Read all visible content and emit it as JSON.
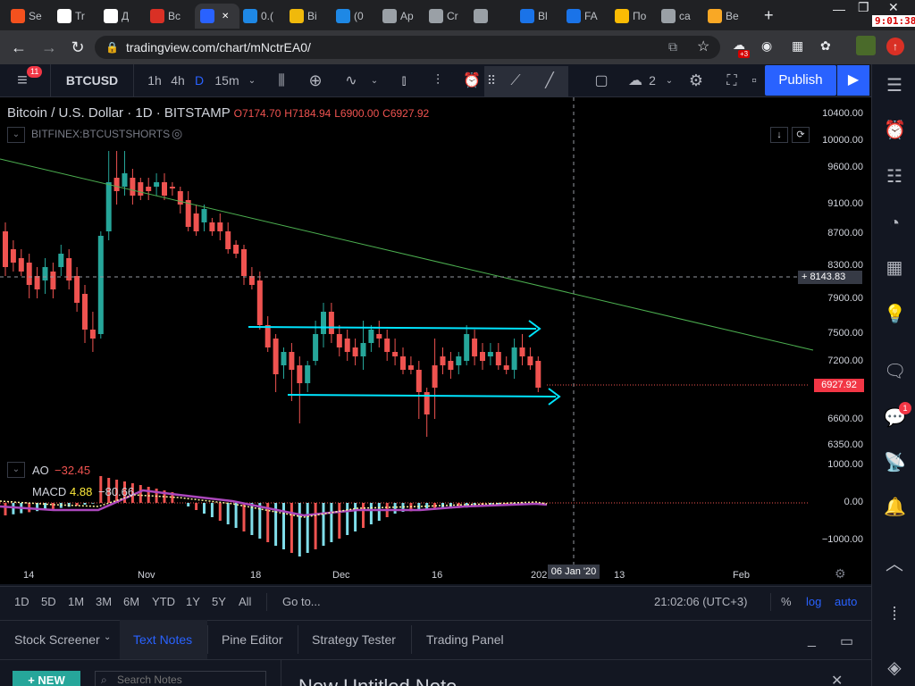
{
  "browser": {
    "tabs": [
      {
        "label": "Se",
        "color": "#f4511e"
      },
      {
        "label": "Tr",
        "color": "#ffffff"
      },
      {
        "label": "Д",
        "color": "#ffffff"
      },
      {
        "label": "Вс",
        "color": "#d93025"
      },
      {
        "label": "",
        "color": "#2962ff",
        "active": true
      },
      {
        "label": "0.(",
        "color": "#1e88e5"
      },
      {
        "label": "Bi",
        "color": "#f0b90b"
      },
      {
        "label": "(0",
        "color": "#1e88e5"
      },
      {
        "label": "Ap",
        "color": "#9aa0a6"
      },
      {
        "label": "Cr",
        "color": "#9aa0a6"
      },
      {
        "label": "",
        "color": "#9aa0a6"
      },
      {
        "label": "Bl",
        "color": "#1a73e8"
      },
      {
        "label": "FA",
        "color": "#1a73e8"
      },
      {
        "label": "По",
        "color": "#fbbc04"
      },
      {
        "label": "ca",
        "color": "#9aa0a6"
      },
      {
        "label": "Be",
        "color": "#f9a825"
      }
    ],
    "new_tab": "+",
    "url": "tradingview.com/chart/mNctrEA0/",
    "clock": "9:01:38",
    "ext_badge": "+3"
  },
  "toolbar": {
    "menu_badge": "11",
    "symbol": "BTCUSD",
    "intervals": [
      "1h",
      "4h",
      "D",
      "15m"
    ],
    "active_interval": "D",
    "layout_count": "2",
    "publish": "Publish"
  },
  "legend": {
    "title": "Bitcoin / U.S. Dollar · 1D · BITSTAMP",
    "o": "O7174.70",
    "h": "H7184.94",
    "l": "L6900.00",
    "c": "C6927.92",
    "sub": "BITFINEX:BTCUSTSHORTS"
  },
  "indicators": {
    "ao_label": "AO",
    "ao_value": "−32.45",
    "macd_label": "MACD",
    "macd_v1": "4.88",
    "macd_v2": "−80.66"
  },
  "price_axis": [
    "10400.00",
    "10000.00",
    "9600.00",
    "9100.00",
    "8700.00",
    "8300.00",
    "7900.00",
    "7500.00",
    "7200.00",
    "6600.00",
    "6350.00",
    "1000.00",
    "0.00",
    "−1000.00"
  ],
  "crosshair_price": "8143.83",
  "last_price": "6927.92",
  "date_axis": [
    "14",
    "Nov",
    "18",
    "Dec",
    "16",
    "202",
    "13",
    "Feb"
  ],
  "crosshair_date": "06 Jan '20",
  "range_buttons": [
    "1D",
    "5D",
    "1M",
    "3M",
    "6M",
    "YTD",
    "1Y",
    "5Y",
    "All"
  ],
  "goto": "Go to...",
  "time": "21:02:06 (UTC+3)",
  "scale_opts": {
    "pct": "%",
    "log": "log",
    "auto": "auto"
  },
  "bottom_tabs": [
    "Stock Screener",
    "Text Notes",
    "Pine Editor",
    "Strategy Tester",
    "Trading Panel"
  ],
  "active_bottom_tab": "Text Notes",
  "notes": {
    "new_btn": "+ NEW",
    "search_placeholder": "Search Notes",
    "title": "New Untitled Note"
  },
  "sidebar_badge": "1",
  "colors": {
    "up": "#26a69a",
    "down": "#ef5350",
    "cyan": "#00e5ff",
    "trend": "#4caf50",
    "accent": "#2962ff"
  }
}
